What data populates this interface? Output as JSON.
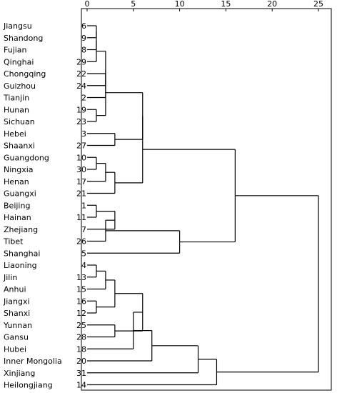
{
  "chart_data": {
    "type": "dendrogram",
    "title": "",
    "xlabel": "",
    "ylabel": "",
    "xlim": [
      0,
      25
    ],
    "x_ticks": [
      0,
      5,
      10,
      15,
      20,
      25
    ],
    "leaves": [
      {
        "label": "Jiangsu",
        "case": 6
      },
      {
        "label": "Shandong",
        "case": 9
      },
      {
        "label": "Fujian",
        "case": 8
      },
      {
        "label": "Qinghai",
        "case": 29
      },
      {
        "label": "Chongqing",
        "case": 22
      },
      {
        "label": "Guizhou",
        "case": 24
      },
      {
        "label": "Tianjin",
        "case": 2
      },
      {
        "label": "Hunan",
        "case": 19
      },
      {
        "label": "Sichuan",
        "case": 23
      },
      {
        "label": "Hebei",
        "case": 3
      },
      {
        "label": "Shaanxi",
        "case": 27
      },
      {
        "label": "Guangdong",
        "case": 10
      },
      {
        "label": "Ningxia",
        "case": 30
      },
      {
        "label": "Henan",
        "case": 17
      },
      {
        "label": "Guangxi",
        "case": 21
      },
      {
        "label": "Beijing",
        "case": 1
      },
      {
        "label": "Hainan",
        "case": 11
      },
      {
        "label": "Zhejiang",
        "case": 7
      },
      {
        "label": "Tibet",
        "case": 26
      },
      {
        "label": "Shanghai",
        "case": 5
      },
      {
        "label": "Liaoning",
        "case": 4
      },
      {
        "label": "Jilin",
        "case": 13
      },
      {
        "label": "Anhui",
        "case": 15
      },
      {
        "label": "Jiangxi",
        "case": 16
      },
      {
        "label": "Shanxi",
        "case": 12
      },
      {
        "label": "Yunnan",
        "case": 25
      },
      {
        "label": "Gansu",
        "case": 28
      },
      {
        "label": "Hubei",
        "case": 18
      },
      {
        "label": "Inner Mongolia",
        "case": 20
      },
      {
        "label": "Xinjiang",
        "case": 31
      },
      {
        "label": "Heilongjiang",
        "case": 14
      }
    ],
    "merges": [
      {
        "a": "L0",
        "b": "L1",
        "height": 1
      },
      {
        "a": "M0",
        "b": "L2",
        "height": 1
      },
      {
        "a": "M1",
        "b": "L3",
        "height": 1
      },
      {
        "a": "L7",
        "b": "L8",
        "height": 1
      },
      {
        "a": "L4",
        "b": "L5",
        "height": 2
      },
      {
        "a": "M4",
        "b": "L6",
        "height": 2
      },
      {
        "a": "M2",
        "b": "M5",
        "height": 2
      },
      {
        "a": "M6",
        "b": "M3",
        "height": 2
      },
      {
        "a": "L9",
        "b": "L10",
        "height": 3
      },
      {
        "a": "L11",
        "b": "L12",
        "height": 1
      },
      {
        "a": "M9",
        "b": "L13",
        "height": 2
      },
      {
        "a": "M10",
        "b": "L14",
        "height": 3
      },
      {
        "a": "M7",
        "b": "M8",
        "height": 6
      },
      {
        "a": "M12",
        "b": "M11",
        "height": 6
      },
      {
        "a": "L15",
        "b": "L16",
        "height": 1
      },
      {
        "a": "M14",
        "b": "L17",
        "height": 3
      },
      {
        "a": "M15",
        "b": "L18",
        "height": 2
      },
      {
        "a": "M16",
        "b": "L19",
        "height": 10
      },
      {
        "a": "M13",
        "b": "M17",
        "height": 16
      },
      {
        "a": "L20",
        "b": "L21",
        "height": 1
      },
      {
        "a": "M19",
        "b": "L22",
        "height": 2
      },
      {
        "a": "L23",
        "b": "L24",
        "height": 1
      },
      {
        "a": "M20",
        "b": "M21",
        "height": 3
      },
      {
        "a": "L25",
        "b": "L26",
        "height": 3
      },
      {
        "a": "M22",
        "b": "M23",
        "height": 6
      },
      {
        "a": "M24",
        "b": "L27",
        "height": 5
      },
      {
        "a": "M25",
        "b": "L28",
        "height": 7
      },
      {
        "a": "M26",
        "b": "L29",
        "height": 12
      },
      {
        "a": "M27",
        "b": "L30",
        "height": 14
      },
      {
        "a": "M18",
        "b": "M28",
        "height": 25
      }
    ]
  }
}
